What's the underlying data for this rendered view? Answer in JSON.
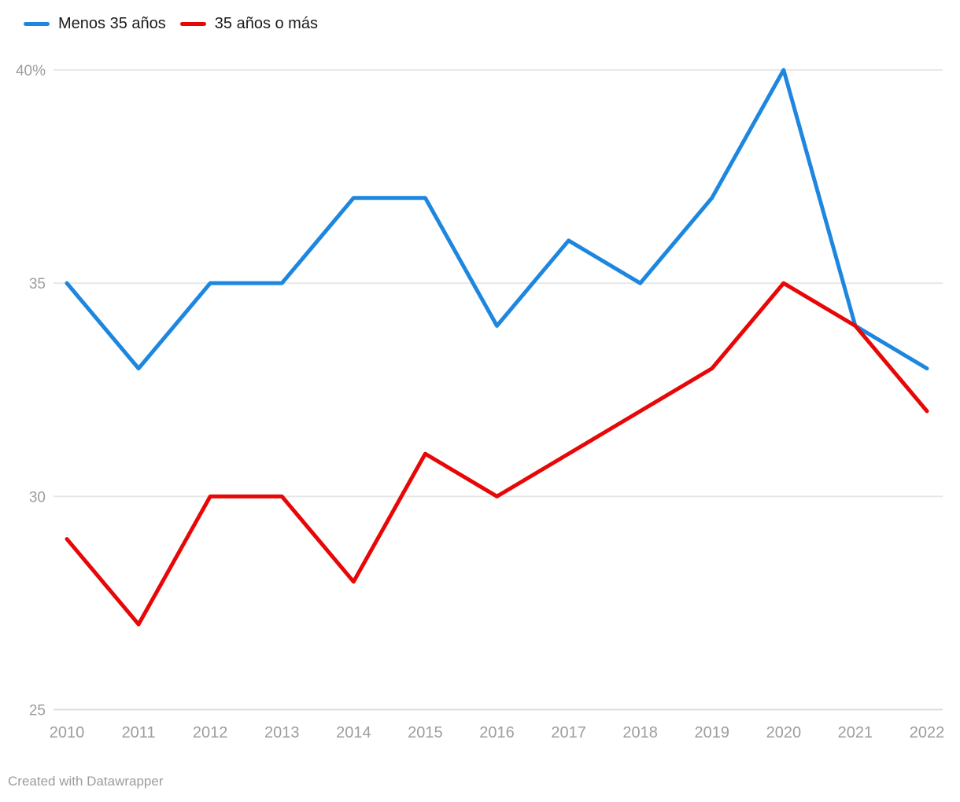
{
  "legend": {
    "items": [
      {
        "id": "menos-35",
        "label": "Menos 35 años",
        "color": "#1d87e0"
      },
      {
        "id": "35-o-mas",
        "label": "35 años o más",
        "color": "#e80707"
      }
    ]
  },
  "footer": {
    "credit": "Created with Datawrapper"
  },
  "chart_data": {
    "type": "line",
    "x": [
      2010,
      2011,
      2012,
      2013,
      2014,
      2015,
      2016,
      2017,
      2018,
      2019,
      2020,
      2021,
      2022
    ],
    "series": [
      {
        "name": "Menos 35 años",
        "color": "#1d87e0",
        "values": [
          35,
          33,
          35,
          35,
          37,
          37,
          34,
          36,
          35,
          37,
          40,
          34,
          33
        ]
      },
      {
        "name": "35 años o más",
        "color": "#e80707",
        "values": [
          29,
          27,
          30,
          30,
          28,
          31,
          30,
          31,
          32,
          33,
          35,
          34,
          32
        ]
      }
    ],
    "title": "",
    "xlabel": "",
    "ylabel": "",
    "ylim": [
      25,
      40
    ],
    "yticks": [
      {
        "value": 40,
        "label": "40%"
      },
      {
        "value": 35,
        "label": "35"
      },
      {
        "value": 30,
        "label": "30"
      },
      {
        "value": 25,
        "label": "25"
      }
    ],
    "grid": "horizontal",
    "legend_position": "top-left"
  }
}
